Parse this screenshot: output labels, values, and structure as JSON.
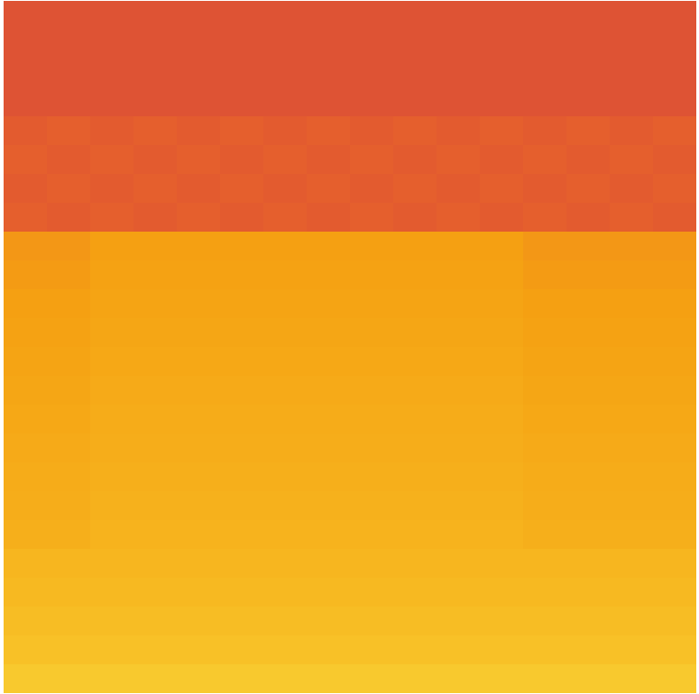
{
  "chart_data": {
    "type": "heatmap",
    "tick_labels": false,
    "zlim": [
      0,
      100
    ],
    "cells": [
      [
        5,
        5,
        5,
        5,
        5,
        5,
        5,
        5,
        5,
        5,
        5,
        5,
        5,
        5,
        5,
        5
      ],
      [
        5,
        5,
        5,
        5,
        5,
        5,
        5,
        5,
        5,
        5,
        5,
        5,
        5,
        5,
        5,
        5
      ],
      [
        5,
        5,
        5,
        5,
        5,
        5,
        5,
        5,
        5,
        5,
        5,
        5,
        5,
        5,
        5,
        5
      ],
      [
        5,
        5,
        5,
        5,
        5,
        5,
        5,
        5,
        5,
        5,
        5,
        5,
        5,
        5,
        5,
        5
      ],
      [
        14,
        18,
        14,
        18,
        14,
        18,
        14,
        18,
        14,
        18,
        14,
        18,
        14,
        18,
        14,
        18
      ],
      [
        18,
        14,
        18,
        14,
        18,
        14,
        18,
        14,
        18,
        14,
        18,
        14,
        18,
        14,
        18,
        14
      ],
      [
        14,
        18,
        14,
        18,
        14,
        18,
        14,
        18,
        14,
        18,
        14,
        18,
        14,
        18,
        14,
        18
      ],
      [
        18,
        14,
        18,
        14,
        18,
        14,
        18,
        14,
        18,
        14,
        18,
        14,
        18,
        14,
        18,
        14
      ],
      [
        46,
        46,
        50,
        50,
        50,
        50,
        50,
        50,
        50,
        50,
        50,
        50,
        46,
        46,
        46,
        46
      ],
      [
        48,
        48,
        52,
        52,
        52,
        52,
        52,
        52,
        52,
        52,
        52,
        52,
        48,
        48,
        48,
        48
      ],
      [
        50,
        50,
        54,
        54,
        54,
        54,
        54,
        54,
        54,
        54,
        54,
        54,
        50,
        50,
        50,
        50
      ],
      [
        52,
        52,
        56,
        56,
        56,
        56,
        56,
        56,
        56,
        56,
        56,
        56,
        52,
        52,
        52,
        52
      ],
      [
        54,
        54,
        58,
        58,
        58,
        58,
        58,
        58,
        58,
        58,
        58,
        58,
        54,
        54,
        54,
        54
      ],
      [
        56,
        56,
        60,
        60,
        60,
        60,
        60,
        60,
        60,
        60,
        60,
        60,
        56,
        56,
        56,
        56
      ],
      [
        58,
        58,
        62,
        62,
        62,
        62,
        62,
        62,
        62,
        62,
        62,
        62,
        58,
        58,
        58,
        58
      ],
      [
        60,
        60,
        64,
        64,
        64,
        64,
        64,
        64,
        64,
        64,
        64,
        64,
        60,
        60,
        60,
        60
      ],
      [
        62,
        62,
        66,
        66,
        66,
        66,
        66,
        66,
        66,
        66,
        66,
        66,
        62,
        62,
        62,
        62
      ],
      [
        64,
        64,
        68,
        68,
        68,
        68,
        68,
        68,
        68,
        68,
        68,
        68,
        64,
        64,
        64,
        64
      ],
      [
        66,
        66,
        70,
        70,
        70,
        70,
        70,
        70,
        70,
        70,
        70,
        70,
        66,
        66,
        66,
        66
      ],
      [
        73,
        73,
        73,
        73,
        73,
        73,
        73,
        73,
        73,
        73,
        73,
        73,
        73,
        73,
        73,
        73
      ],
      [
        76,
        76,
        76,
        76,
        76,
        76,
        76,
        76,
        76,
        76,
        76,
        76,
        76,
        76,
        76,
        76
      ],
      [
        79,
        79,
        79,
        79,
        79,
        79,
        79,
        79,
        79,
        79,
        79,
        79,
        79,
        79,
        79,
        79
      ],
      [
        82,
        82,
        82,
        82,
        82,
        82,
        82,
        82,
        82,
        82,
        82,
        82,
        82,
        82,
        82,
        82
      ],
      [
        88,
        88,
        88,
        88,
        88,
        88,
        88,
        88,
        88,
        88,
        88,
        88,
        88,
        88,
        88,
        88
      ]
    ]
  }
}
